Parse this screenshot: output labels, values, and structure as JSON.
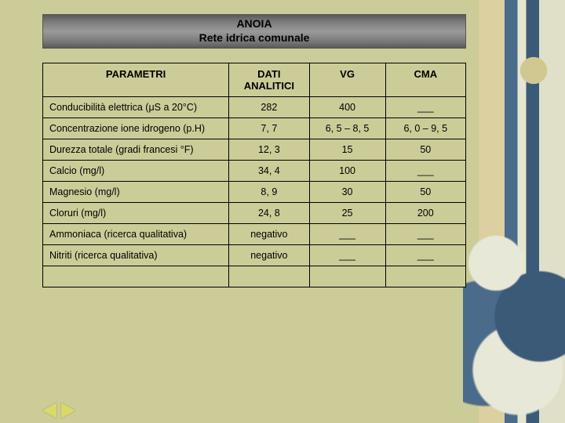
{
  "colors": {
    "page_bg": "#cccc99",
    "table_border": "#000000",
    "title_band_gradient": [
      "#5a5a5a",
      "#9a9a9a",
      "#5a5a5a"
    ],
    "nav_arrow": "#d9d96a"
  },
  "typography": {
    "family": "Arial, Helvetica, sans-serif",
    "title_fontsize_pt": 11,
    "header_fontsize_pt": 10,
    "cell_fontsize_pt": 9.5,
    "small_fontsize_pt": 8
  },
  "title": {
    "line1": "ANOIA",
    "line2": "Rete idrica comunale"
  },
  "table": {
    "type": "table",
    "columns": [
      "PARAMETRI",
      "DATI ANALITICI",
      "VG",
      "CMA"
    ],
    "col_widths_pct": [
      44,
      19,
      18,
      19
    ],
    "col_align": [
      "left",
      "center",
      "center",
      "center"
    ],
    "rows": [
      {
        "param": "Conducibilità elettrica (μS a 20°C)",
        "dati": "282",
        "vg": "400",
        "cma": "___"
      },
      {
        "param": "Concentrazione ione idrogeno (p.H)",
        "dati": "7, 7",
        "vg": "6, 5 – 8, 5",
        "cma": "6, 0 – 9, 5"
      },
      {
        "param": "Durezza totale (gradi francesi °F)",
        "dati": "12, 3",
        "vg": "15",
        "cma": "50"
      },
      {
        "param": "Calcio (mg/l)",
        "dati": "34, 4",
        "vg": "100",
        "cma": "___"
      },
      {
        "param": "Magnesio (mg/l)",
        "dati": "8, 9",
        "vg": "30",
        "cma": "50"
      },
      {
        "param": "Cloruri (mg/l)",
        "dati": "24, 8",
        "vg": "25",
        "cma": "200"
      },
      {
        "param": "Ammoniaca (ricerca qualitativa)",
        "dati": "negativo",
        "vg": "___",
        "cma": "___"
      },
      {
        "param": "Nitriti (ricerca qualitativa)",
        "dati": "negativo",
        "vg": "___",
        "cma": "___"
      }
    ]
  },
  "nav": {
    "prev": "previous",
    "next": "next"
  }
}
